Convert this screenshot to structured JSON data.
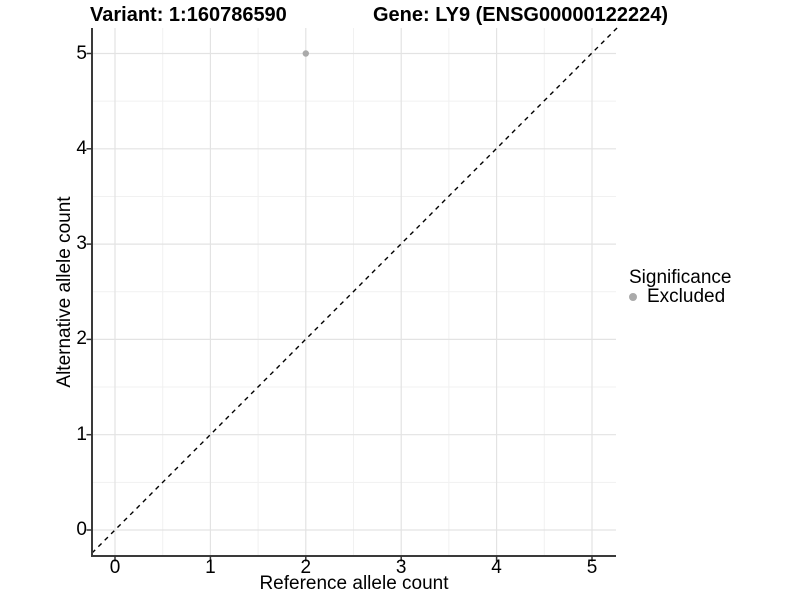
{
  "chart_data": {
    "type": "scatter",
    "title_left": "Variant: 1:160786590",
    "title_right": "Gene: LY9 (ENSG00000122224)",
    "xlabel": "Reference allele count",
    "ylabel": "Alternative allele count",
    "xlim": [
      -0.25,
      5.25
    ],
    "ylim": [
      -0.25,
      5.25
    ],
    "x_ticks": [
      0,
      1,
      2,
      3,
      4,
      5
    ],
    "y_ticks": [
      0,
      1,
      2,
      3,
      4,
      5
    ],
    "x_minor": [
      0.5,
      1.5,
      2.5,
      3.5,
      4.5
    ],
    "y_minor": [
      0.5,
      1.5,
      2.5,
      3.5,
      4.5
    ],
    "grid": true,
    "reference_line": {
      "type": "identity y=x",
      "style": "dashed",
      "color": "#000000"
    },
    "series": [
      {
        "name": "Excluded",
        "color": "#aaaaaa",
        "points": [
          {
            "x": 2,
            "y": 5
          }
        ]
      }
    ],
    "legend": {
      "title": "Significance",
      "position": "right",
      "entries": [
        {
          "label": "Excluded",
          "color": "#aaaaaa"
        }
      ]
    },
    "colors": {
      "grid_major": "#e3e3e3",
      "grid_minor": "#f1f1f1",
      "axis": "#3a3a3a",
      "tick": "#333333",
      "point": "#aaaaaa",
      "text": "#000000"
    }
  }
}
